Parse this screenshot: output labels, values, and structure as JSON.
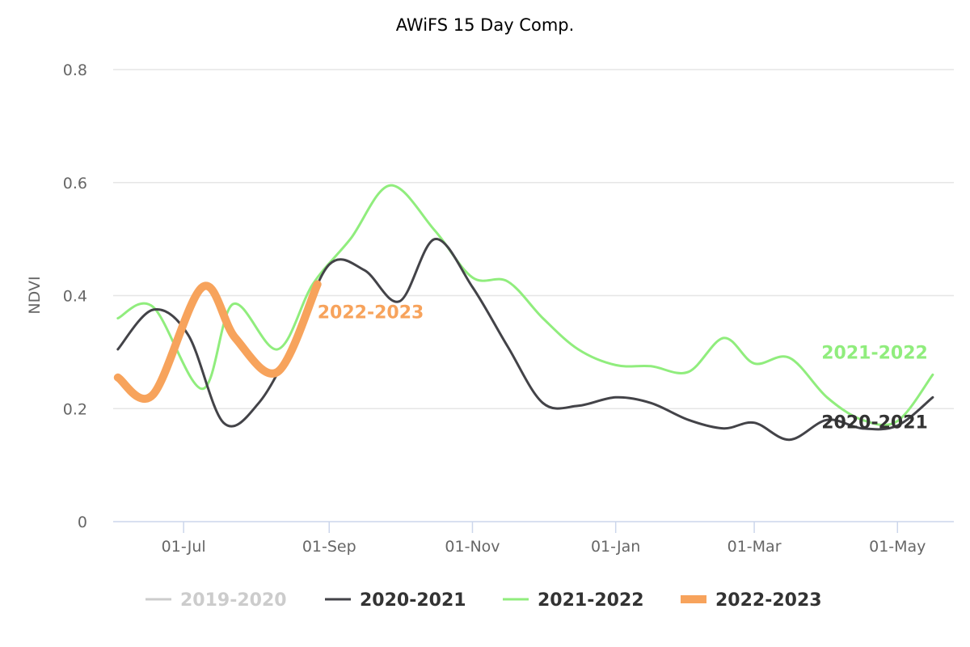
{
  "chart_data": {
    "type": "line",
    "title": "AWiFS 15 Day Comp.",
    "ylabel": "NDVI",
    "xlabel": "",
    "ylim": [
      0,
      0.8
    ],
    "yticks": [
      0,
      0.2,
      0.4,
      0.6,
      0.8
    ],
    "ytick_labels": [
      "0",
      "0.2",
      "0.4",
      "0.6",
      "0.8"
    ],
    "grid": true,
    "legend_position": "bottom-center",
    "xrange": [
      "2022-06-01",
      "2023-05-25"
    ],
    "xticks": [
      {
        "date": "2022-07-01",
        "label": "01-Jul"
      },
      {
        "date": "2022-09-01",
        "label": "01-Sep"
      },
      {
        "date": "2022-11-01",
        "label": "01-Nov"
      },
      {
        "date": "2023-01-01",
        "label": "01-Jan"
      },
      {
        "date": "2023-03-01",
        "label": "01-Mar"
      },
      {
        "date": "2023-05-01",
        "label": "01-May"
      }
    ],
    "series": [
      {
        "name": "2019-2020",
        "color": "#cccccc",
        "visible": false,
        "points": []
      },
      {
        "name": "2020-2021",
        "color": "#434348",
        "visible": true,
        "show_end_label": true,
        "points": [
          [
            "2022-06-03",
            0.305
          ],
          [
            "2022-06-18",
            0.375
          ],
          [
            "2022-07-03",
            0.33
          ],
          [
            "2022-07-18",
            0.175
          ],
          [
            "2022-08-02",
            0.21
          ],
          [
            "2022-08-17",
            0.32
          ],
          [
            "2022-09-01",
            0.455
          ],
          [
            "2022-09-16",
            0.445
          ],
          [
            "2022-10-01",
            0.39
          ],
          [
            "2022-10-16",
            0.5
          ],
          [
            "2022-11-01",
            0.415
          ],
          [
            "2022-11-16",
            0.31
          ],
          [
            "2022-12-01",
            0.21
          ],
          [
            "2022-12-16",
            0.205
          ],
          [
            "2023-01-01",
            0.22
          ],
          [
            "2023-01-16",
            0.21
          ],
          [
            "2023-02-01",
            0.18
          ],
          [
            "2023-02-16",
            0.165
          ],
          [
            "2023-03-01",
            0.175
          ],
          [
            "2023-03-16",
            0.145
          ],
          [
            "2023-04-01",
            0.18
          ],
          [
            "2023-04-16",
            0.165
          ],
          [
            "2023-05-01",
            0.17
          ],
          [
            "2023-05-16",
            0.22
          ]
        ]
      },
      {
        "name": "2021-2022",
        "color": "#90ed7d",
        "visible": true,
        "show_end_label": true,
        "points": [
          [
            "2022-06-03",
            0.36
          ],
          [
            "2022-06-18",
            0.38
          ],
          [
            "2022-07-09",
            0.235
          ],
          [
            "2022-07-22",
            0.385
          ],
          [
            "2022-08-10",
            0.305
          ],
          [
            "2022-08-25",
            0.42
          ],
          [
            "2022-09-10",
            0.5
          ],
          [
            "2022-09-27",
            0.595
          ],
          [
            "2022-10-16",
            0.515
          ],
          [
            "2022-11-01",
            0.432
          ],
          [
            "2022-11-16",
            0.425
          ],
          [
            "2022-12-01",
            0.36
          ],
          [
            "2022-12-16",
            0.305
          ],
          [
            "2023-01-01",
            0.277
          ],
          [
            "2023-01-16",
            0.275
          ],
          [
            "2023-02-01",
            0.265
          ],
          [
            "2023-02-16",
            0.325
          ],
          [
            "2023-03-01",
            0.28
          ],
          [
            "2023-03-16",
            0.29
          ],
          [
            "2023-04-01",
            0.22
          ],
          [
            "2023-04-16",
            0.18
          ],
          [
            "2023-05-01",
            0.178
          ],
          [
            "2023-05-16",
            0.26
          ]
        ]
      },
      {
        "name": "2022-2023",
        "color": "#f7a35c",
        "visible": true,
        "show_end_label": true,
        "points": [
          [
            "2022-06-03",
            0.255
          ],
          [
            "2022-06-18",
            0.225
          ],
          [
            "2022-07-09",
            0.415
          ],
          [
            "2022-07-23",
            0.325
          ],
          [
            "2022-08-10",
            0.265
          ],
          [
            "2022-08-27",
            0.42
          ]
        ]
      }
    ]
  },
  "legend": [
    {
      "label": "2019-2020",
      "color": "#cccccc",
      "text_color": "#cccccc",
      "thick": false
    },
    {
      "label": "2020-2021",
      "color": "#434348",
      "text_color": "#333333",
      "thick": false
    },
    {
      "label": "2021-2022",
      "color": "#90ed7d",
      "text_color": "#333333",
      "thick": false
    },
    {
      "label": "2022-2023",
      "color": "#f7a35c",
      "text_color": "#333333",
      "thick": true
    }
  ]
}
